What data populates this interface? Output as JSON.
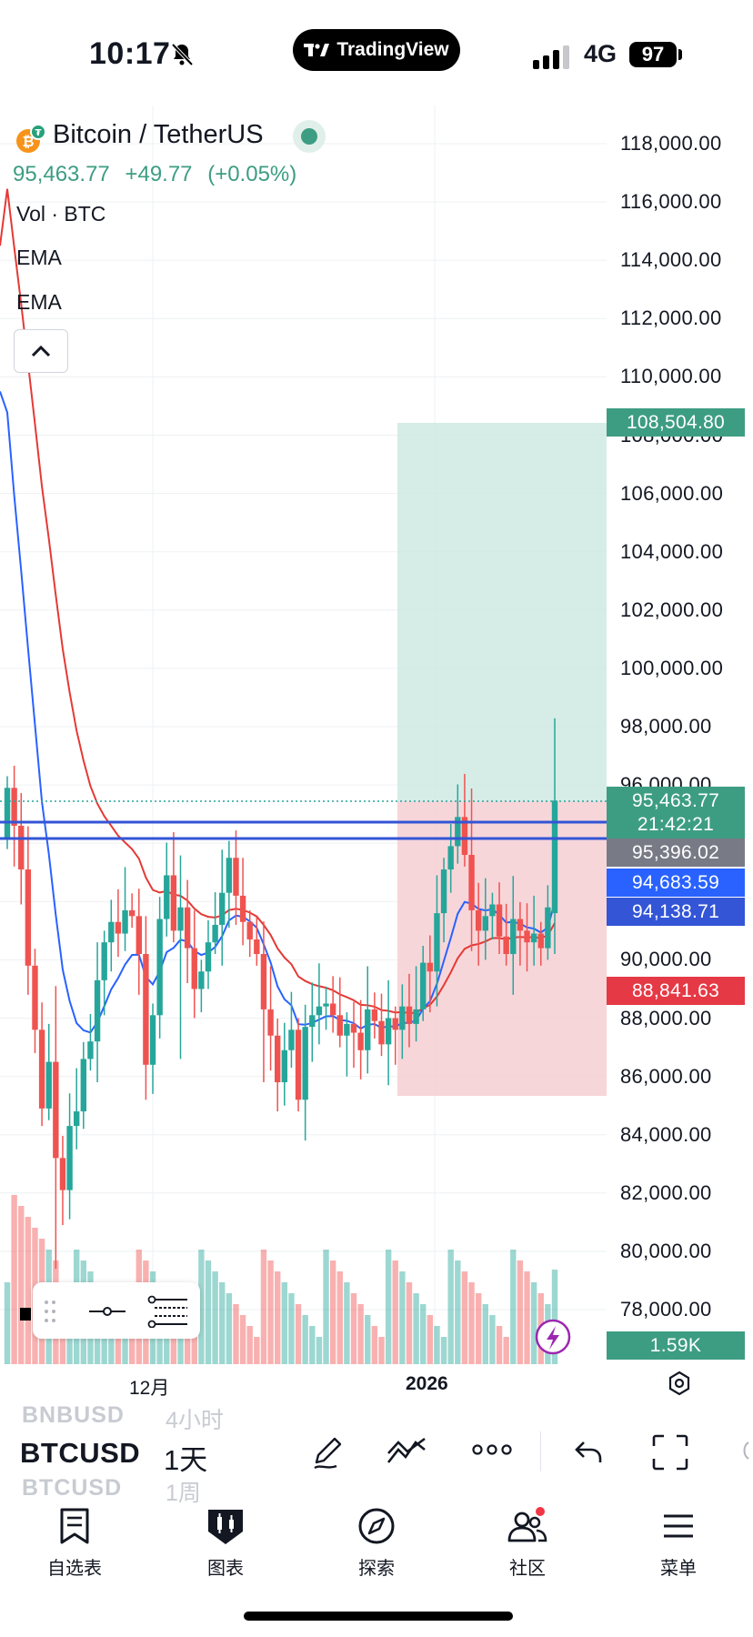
{
  "status_bar": {
    "time": "10:17",
    "app_pill": "TradingView",
    "network": "4G",
    "battery": "97"
  },
  "legend": {
    "symbol_title": "Bitcoin / TetherUS",
    "last": "95,463.77",
    "change": "+49.77",
    "change_pct": "(+0.05%)",
    "indicators": [
      "Vol · BTC",
      "EMA",
      "EMA"
    ]
  },
  "price_axis": {
    "ticks": [
      "118,000.00",
      "116,000.00",
      "114,000.00",
      "112,000.00",
      "110,000.00",
      "108,000.00",
      "106,000.00",
      "104,000.00",
      "102,000.00",
      "100,000.00",
      "98,000.00",
      "96,000.00",
      "90,000.00",
      "88,000.00",
      "86,000.00",
      "84,000.00",
      "82,000.00",
      "80,000.00",
      "78,000.00"
    ],
    "labels": {
      "target": "108,504.80",
      "last_price": "95,463.77",
      "countdown": "21:42:21",
      "entry": "95,396.02",
      "ema_fast": "94,683.59",
      "ema_slow": "94,138.71",
      "stop": "88,841.63",
      "volume": "1.59K"
    }
  },
  "time_axis": {
    "ticks": [
      "12月",
      "2026"
    ]
  },
  "colors": {
    "up": "#26a69a",
    "down": "#ef5350",
    "ema_fast": "#2962ff",
    "ema_slow": "#e53935",
    "hline": "#3355d6"
  },
  "symbol_bar": {
    "ghost_above": {
      "symbol": "BNBUSD",
      "interval": "4小时"
    },
    "current": {
      "symbol": "BTCUSD",
      "interval": "1天"
    },
    "ghost_below": {
      "symbol": "BTCUSD",
      "interval": "1周"
    }
  },
  "tabs": [
    {
      "label": "自选表",
      "icon": "watchlist-icon"
    },
    {
      "label": "图表",
      "icon": "chart-icon"
    },
    {
      "label": "探索",
      "icon": "compass-icon"
    },
    {
      "label": "社区",
      "icon": "community-icon"
    },
    {
      "label": "菜单",
      "icon": "menu-icon"
    }
  ]
}
